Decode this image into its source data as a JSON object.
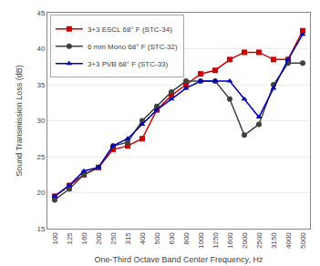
{
  "chart_data": {
    "type": "line",
    "xlabel": "One-Third Octave Band Center Frequency, Hz",
    "ylabel": "Sound Transmission Loss (dB)",
    "categories": [
      "100",
      "125",
      "160",
      "200",
      "250",
      "315",
      "400",
      "500",
      "630",
      "800",
      "1000",
      "1250",
      "1600",
      "2000",
      "2500",
      "3150",
      "4000",
      "5000"
    ],
    "series": [
      {
        "name": "3+3 ESCL 68° F (STC-34)",
        "color": "#cc0000",
        "marker": "square",
        "values": [
          19.5,
          21.0,
          22.5,
          23.5,
          26.0,
          26.5,
          27.5,
          31.5,
          33.5,
          35.0,
          36.5,
          37.0,
          38.5,
          39.5,
          39.5,
          38.5,
          38.5,
          42.5
        ]
      },
      {
        "name": "6 mm Mono 68° F (STC-32)",
        "color": "#404040",
        "marker": "circle",
        "values": [
          19.0,
          20.5,
          22.5,
          23.5,
          26.5,
          27.0,
          30.0,
          32.0,
          34.0,
          35.5,
          35.5,
          35.5,
          33.0,
          28.0,
          29.5,
          35.0,
          38.0,
          38.0
        ]
      },
      {
        "name": "3+3 PVB 68° F (STC-33)",
        "color": "#0000bb",
        "marker": "triangle",
        "values": [
          19.5,
          21.0,
          23.0,
          23.5,
          26.5,
          27.5,
          29.5,
          31.5,
          33.0,
          34.5,
          35.5,
          35.5,
          35.5,
          33.0,
          30.5,
          34.5,
          38.5,
          42.0
        ]
      }
    ],
    "ylim": [
      15,
      45
    ],
    "yticks": [
      15,
      20,
      25,
      30,
      35,
      40,
      45
    ],
    "grid": true,
    "legend": "upper left"
  }
}
